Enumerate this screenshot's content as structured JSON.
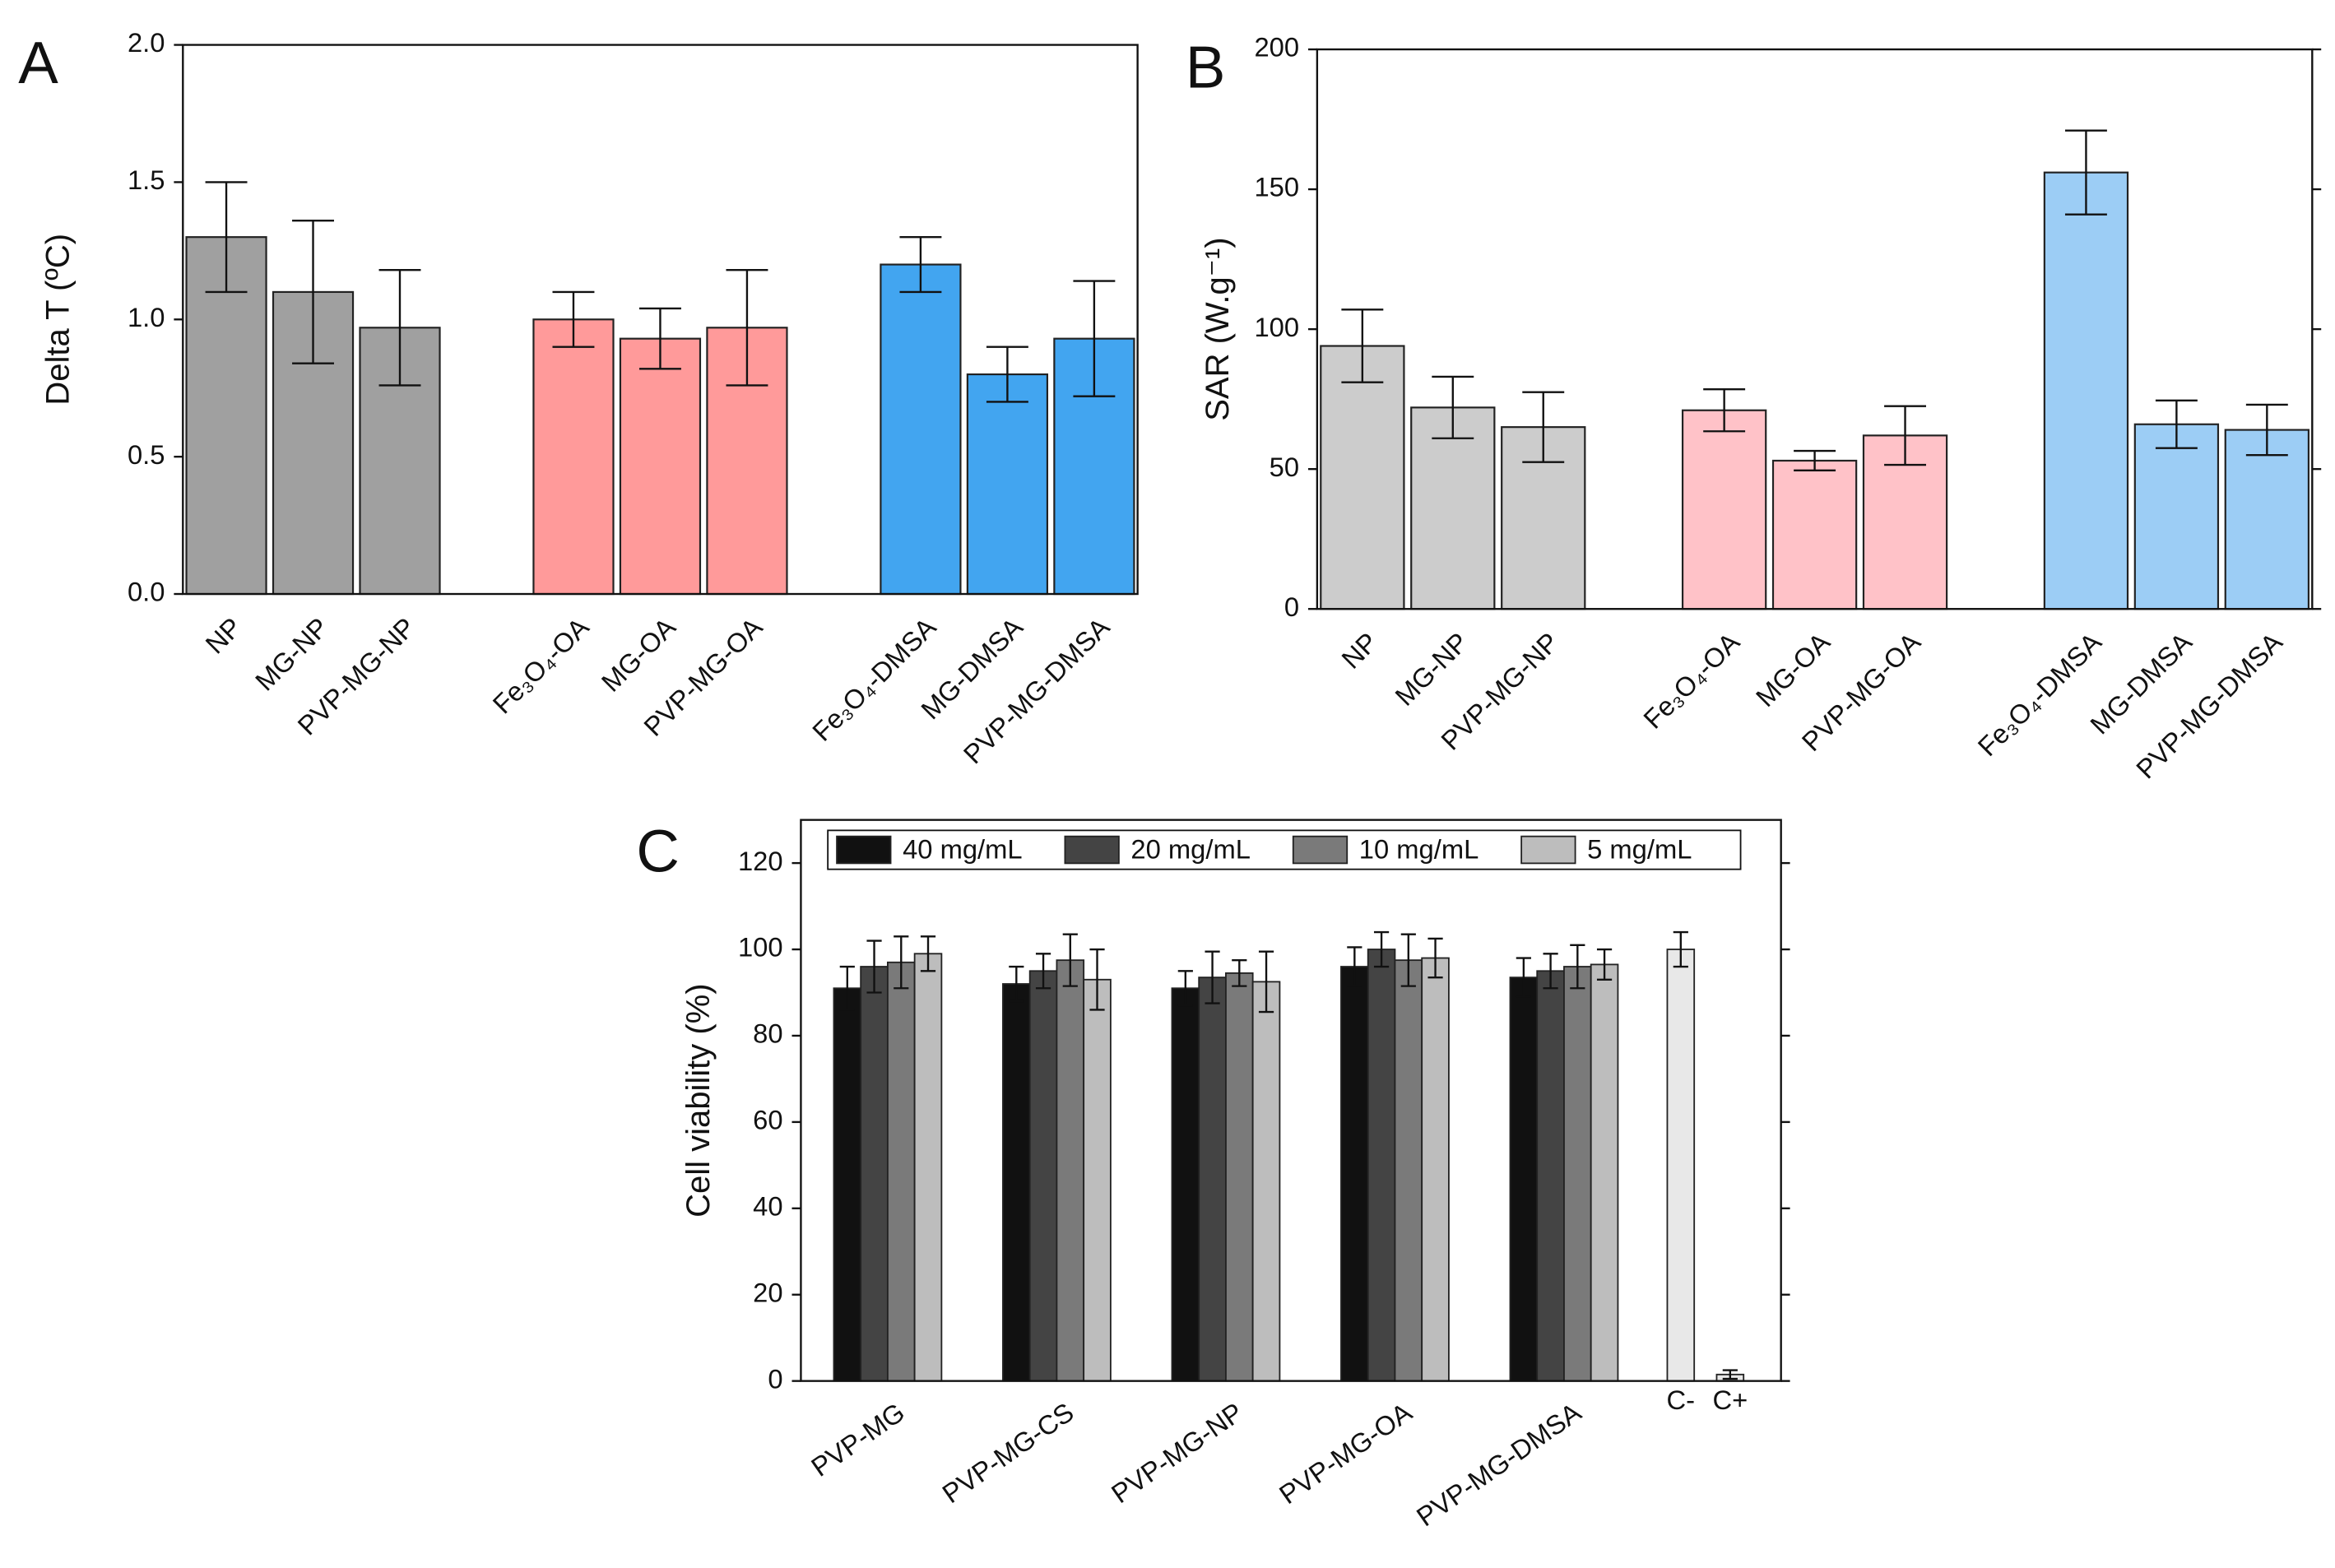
{
  "chart_data": [
    {
      "type": "bar",
      "panel_label": "A",
      "y_label": "Delta T (ºC)",
      "categories": [
        "NP",
        "MG-NP",
        "PVP-MG-NP",
        null,
        "Fe₃O₄-OA",
        "MG-OA",
        "PVP-MG-OA",
        null,
        "Fe₃O₄-DMSA",
        "MG-DMSA",
        "PVP-MG-DMSA"
      ],
      "values": [
        1.3,
        1.1,
        0.97,
        null,
        1.0,
        0.93,
        0.97,
        null,
        1.2,
        0.8,
        0.93
      ],
      "errors": [
        0.2,
        0.26,
        0.21,
        null,
        0.1,
        0.11,
        0.21,
        null,
        0.1,
        0.1,
        0.21
      ],
      "colors": [
        "#a0a0a0",
        "#a0a0a0",
        "#a0a0a0",
        null,
        "#ff9a9a",
        "#ff9a9a",
        "#ff9a9a",
        null,
        "#42a5f0",
        "#42a5f0",
        "#42a5f0"
      ],
      "ylim": [
        0,
        2
      ],
      "yticks": [
        {
          "value": 0,
          "label": "0.0"
        },
        {
          "value": 0.5,
          "label": "0.5"
        },
        {
          "value": 1,
          "label": "1.0"
        },
        {
          "value": 1.5,
          "label": "1.5"
        },
        {
          "value": 2,
          "label": "2.0"
        }
      ],
      "mirror_axes": false
    },
    {
      "type": "bar",
      "panel_label": "B",
      "y_label": "SAR (W.g⁻¹)",
      "categories": [
        "NP",
        "MG-NP",
        "PVP-MG-NP",
        null,
        "Fe₃O₄-OA",
        "MG-OA",
        "PVP-MG-OA",
        null,
        "Fe₃O₄-DMSA",
        "MG-DMSA",
        "PVP-MG-DMSA"
      ],
      "values": [
        94,
        72,
        65,
        null,
        71,
        53,
        62,
        null,
        156,
        66,
        64
      ],
      "errors": [
        13,
        11,
        12.5,
        null,
        7.5,
        3.5,
        10.5,
        null,
        15,
        8.5,
        9
      ],
      "colors": [
        "#cccccc",
        "#cccccc",
        "#cccccc",
        null,
        "#ffc2c8",
        "#ffc2c8",
        "#ffc2c8",
        null,
        "#9ccdf5",
        "#9ccdf5",
        "#9ccdf5"
      ],
      "ylim": [
        0,
        200
      ],
      "yticks": [
        0,
        50,
        100,
        150,
        200
      ],
      "mirror_axes": true
    },
    {
      "type": "grouped_bar",
      "panel_label": "C",
      "y_label": "Cell viability (%)",
      "categories": [
        "PVP-MG",
        "PVP-MG-CS",
        "PVP-MG-NP",
        "PVP-MG-OA",
        "PVP-MG-DMSA"
      ],
      "series": [
        {
          "name": "40 mg/mL",
          "color": "#111111",
          "values": [
            91,
            92,
            91,
            96,
            93.5
          ],
          "errors": [
            5,
            4,
            4,
            4.5,
            4.5
          ]
        },
        {
          "name": "20 mg/mL",
          "color": "#444444",
          "values": [
            96,
            95,
            93.5,
            100,
            95
          ],
          "errors": [
            6,
            4,
            6,
            4,
            4
          ]
        },
        {
          "name": "10 mg/mL",
          "color": "#7a7a7a",
          "values": [
            97,
            97.5,
            94.5,
            97.5,
            96
          ],
          "errors": [
            6,
            6,
            3,
            6,
            5
          ]
        },
        {
          "name": "5 mg/mL",
          "color": "#bdbdbd",
          "values": [
            99,
            93,
            92.5,
            98,
            96.5
          ],
          "errors": [
            4,
            7,
            7,
            4.5,
            3.5
          ]
        }
      ],
      "controls": {
        "categories": [
          "C-",
          "C+"
        ],
        "values": [
          100,
          1.5
        ],
        "errors": [
          4,
          1
        ],
        "color": "#e8e8e8"
      },
      "ylim": [
        0,
        130
      ],
      "yticks": [
        0,
        20,
        40,
        60,
        80,
        100,
        120
      ],
      "mirror_axes": true,
      "legend": "top"
    }
  ]
}
